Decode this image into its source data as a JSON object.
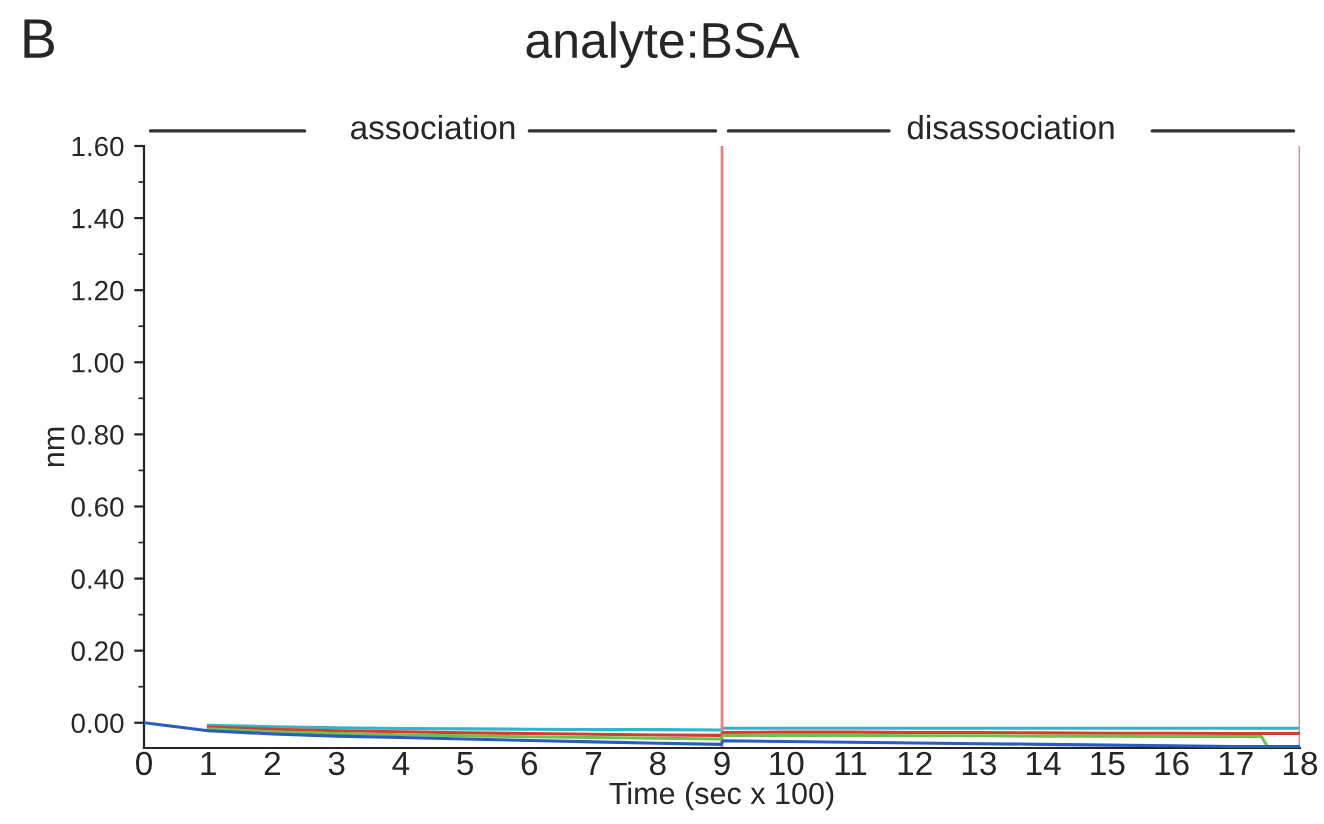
{
  "chart_data": {
    "type": "line",
    "title": "analyte:BSA",
    "xlabel": "Time (sec x 100)",
    "ylabel": "nm",
    "annotations": [
      "B",
      "association",
      "disassociation"
    ],
    "x": [
      0,
      1,
      2,
      3,
      4,
      5,
      6,
      7,
      8,
      8.99,
      9.01,
      10,
      11,
      12,
      13,
      14,
      15,
      16,
      17,
      17.4,
      17.5,
      18
    ],
    "series": [
      {
        "color": "#33b5c8",
        "values": [
          null,
          -0.007,
          -0.011,
          -0.014,
          -0.016,
          -0.017,
          -0.018,
          -0.019,
          -0.019,
          -0.02,
          -0.015,
          -0.015,
          -0.015,
          -0.015,
          -0.015,
          -0.015,
          -0.015,
          -0.015,
          -0.015,
          -0.015,
          -0.015,
          -0.015
        ]
      },
      {
        "color": "#d83a2e",
        "values": [
          null,
          -0.012,
          -0.018,
          -0.022,
          -0.025,
          -0.028,
          -0.03,
          -0.032,
          -0.034,
          -0.035,
          -0.027,
          -0.026,
          -0.026,
          -0.027,
          -0.027,
          -0.028,
          -0.029,
          -0.029,
          -0.03,
          -0.03,
          -0.03,
          -0.03
        ]
      },
      {
        "color": "#6cc24a",
        "values": [
          null,
          -0.017,
          -0.025,
          -0.03,
          -0.033,
          -0.036,
          -0.039,
          -0.041,
          -0.043,
          -0.045,
          -0.035,
          -0.035,
          -0.035,
          -0.036,
          -0.036,
          -0.037,
          -0.037,
          -0.038,
          -0.038,
          -0.038,
          -0.068,
          -0.068
        ]
      },
      {
        "color": "#2a5bbf",
        "values": [
          0,
          -0.022,
          -0.031,
          -0.037,
          -0.041,
          -0.045,
          -0.049,
          -0.053,
          -0.057,
          -0.06,
          -0.05,
          -0.052,
          -0.054,
          -0.056,
          -0.058,
          -0.06,
          -0.062,
          -0.064,
          -0.066,
          -0.066,
          -0.066,
          -0.066
        ]
      }
    ],
    "xlim": [
      0,
      18
    ],
    "xticks": [
      0,
      1,
      2,
      3,
      4,
      5,
      6,
      7,
      8,
      9,
      10,
      11,
      12,
      13,
      14,
      15,
      16,
      17,
      18
    ],
    "ylim": [
      -0.07,
      1.6
    ],
    "yticks": [
      {
        "value": 0,
        "label": "0.00"
      },
      {
        "value": 0.2,
        "label": "0.20"
      },
      {
        "value": 0.4,
        "label": "0.40"
      },
      {
        "value": 0.6,
        "label": "0.60"
      },
      {
        "value": 0.8,
        "label": "0.80"
      },
      {
        "value": 1.0,
        "label": "1.00"
      },
      {
        "value": 1.2,
        "label": "1.20"
      },
      {
        "value": 1.4,
        "label": "1.40"
      },
      {
        "value": 1.6,
        "label": "1.60"
      }
    ],
    "ref_lines": [
      {
        "axis": "x",
        "value": 9,
        "color": "#f08080"
      },
      {
        "axis": "x",
        "value": 18,
        "color": "#f08080"
      }
    ],
    "grid": false,
    "legend": false,
    "marker": "none",
    "line_style": "solid"
  }
}
